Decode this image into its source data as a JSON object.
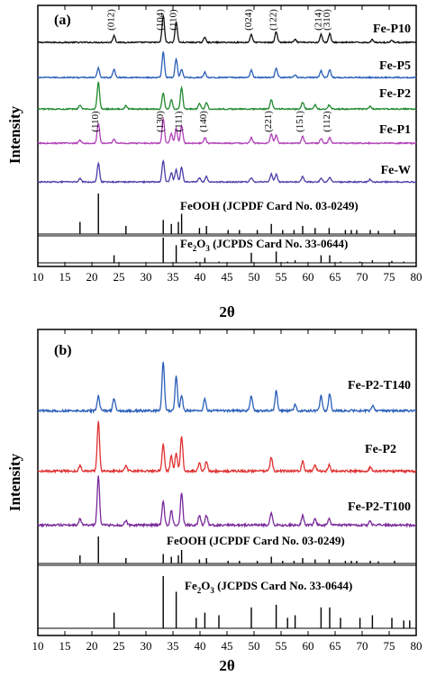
{
  "figure": {
    "x_title": "2θ",
    "y_title": "Intensity"
  },
  "chart_data": [
    {
      "type": "line",
      "panel": "(a)",
      "x_label": "2θ",
      "y_label": "Intensity",
      "xlim": [
        10,
        80
      ],
      "x_ticks": [
        10,
        15,
        20,
        25,
        30,
        35,
        40,
        45,
        50,
        55,
        60,
        65,
        70,
        75,
        80
      ],
      "series": [
        {
          "name": "Fe-P10",
          "color": "#111111",
          "profile": "hematite",
          "peaks": [
            [
              24.1,
              0.25
            ],
            [
              33.2,
              1.0
            ],
            [
              35.6,
              0.75
            ],
            [
              40.9,
              0.2
            ],
            [
              49.5,
              0.3
            ],
            [
              54.1,
              0.4
            ],
            [
              57.6,
              0.1
            ],
            [
              62.4,
              0.3
            ],
            [
              64.0,
              0.32
            ],
            [
              71.9,
              0.1
            ],
            [
              75.5,
              0.08
            ]
          ]
        },
        {
          "name": "Fe-P5",
          "color": "#2b5fb8",
          "profile": "mixed",
          "peaks": [
            [
              21.2,
              0.35
            ],
            [
              24.1,
              0.3
            ],
            [
              33.2,
              0.95
            ],
            [
              35.6,
              0.7
            ],
            [
              36.6,
              0.3
            ],
            [
              40.9,
              0.2
            ],
            [
              49.5,
              0.28
            ],
            [
              54.1,
              0.35
            ],
            [
              57.6,
              0.1
            ],
            [
              62.4,
              0.25
            ],
            [
              64.0,
              0.3
            ]
          ]
        },
        {
          "name": "Fe-P2",
          "color": "#1f8a2e",
          "profile": "goethite",
          "peaks": [
            [
              17.8,
              0.15
            ],
            [
              21.2,
              1.0
            ],
            [
              26.3,
              0.12
            ],
            [
              33.2,
              0.6
            ],
            [
              34.7,
              0.35
            ],
            [
              36.6,
              0.8
            ],
            [
              39.9,
              0.2
            ],
            [
              41.2,
              0.25
            ],
            [
              53.2,
              0.35
            ],
            [
              59.0,
              0.25
            ],
            [
              61.3,
              0.15
            ],
            [
              63.9,
              0.15
            ],
            [
              71.5,
              0.1
            ]
          ]
        },
        {
          "name": "Fe-P1",
          "color": "#b040b8",
          "profile": "goethite",
          "peaks": [
            [
              17.8,
              0.12
            ],
            [
              21.2,
              0.75
            ],
            [
              24.1,
              0.15
            ],
            [
              33.2,
              0.9
            ],
            [
              34.7,
              0.35
            ],
            [
              35.6,
              0.55
            ],
            [
              36.6,
              0.65
            ],
            [
              40.9,
              0.2
            ],
            [
              49.5,
              0.2
            ],
            [
              53.2,
              0.35
            ],
            [
              54.1,
              0.3
            ],
            [
              59.0,
              0.25
            ],
            [
              62.4,
              0.18
            ],
            [
              64.0,
              0.2
            ]
          ]
        },
        {
          "name": "Fe-W",
          "color": "#4a3fa8",
          "profile": "goethite",
          "peaks": [
            [
              17.8,
              0.12
            ],
            [
              21.2,
              0.7
            ],
            [
              33.2,
              0.8
            ],
            [
              34.7,
              0.35
            ],
            [
              35.6,
              0.45
            ],
            [
              36.6,
              0.55
            ],
            [
              39.9,
              0.15
            ],
            [
              41.2,
              0.2
            ],
            [
              49.5,
              0.15
            ],
            [
              53.2,
              0.3
            ],
            [
              54.1,
              0.28
            ],
            [
              59.0,
              0.2
            ],
            [
              62.4,
              0.15
            ],
            [
              64.0,
              0.18
            ],
            [
              71.5,
              0.1
            ]
          ]
        }
      ],
      "hkl_upper": [
        {
          "label": "(012)",
          "x": 24.1
        },
        {
          "label": "(104)",
          "x": 33.2
        },
        {
          "label": "(110)",
          "x": 35.6
        },
        {
          "label": "(024)",
          "x": 49.5
        },
        {
          "label": "(122)",
          "x": 54.1
        },
        {
          "label": "(214)",
          "x": 62.4
        },
        {
          "label": "(310)",
          "x": 64.0
        }
      ],
      "hkl_lower": [
        {
          "label": "(110)",
          "x": 21.2
        },
        {
          "label": "(130)",
          "x": 33.2
        },
        {
          "label": "(111)",
          "x": 36.6
        },
        {
          "label": "(140)",
          "x": 41.2
        },
        {
          "label": "(221)",
          "x": 53.2
        },
        {
          "label": "(151)",
          "x": 59.0
        },
        {
          "label": "(112)",
          "x": 64.0
        }
      ],
      "references": [
        {
          "name": "FeOOH (JCPDF Card No. 03-0249)",
          "lines": [
            [
              17.8,
              0.3
            ],
            [
              21.2,
              1.0
            ],
            [
              26.3,
              0.2
            ],
            [
              33.2,
              0.35
            ],
            [
              34.7,
              0.25
            ],
            [
              36.0,
              0.3
            ],
            [
              36.6,
              0.5
            ],
            [
              39.9,
              0.15
            ],
            [
              41.2,
              0.2
            ],
            [
              45.2,
              0.1
            ],
            [
              47.3,
              0.1
            ],
            [
              50.6,
              0.1
            ],
            [
              53.2,
              0.25
            ],
            [
              55.3,
              0.1
            ],
            [
              57.4,
              0.1
            ],
            [
              59.0,
              0.2
            ],
            [
              61.3,
              0.15
            ],
            [
              63.9,
              0.15
            ],
            [
              66.9,
              0.1
            ],
            [
              68.0,
              0.1
            ],
            [
              69.0,
              0.1
            ],
            [
              71.5,
              0.1
            ],
            [
              73.0,
              0.08
            ],
            [
              76.0,
              0.1
            ]
          ]
        },
        {
          "name": "Fe2O3 (JCPDS Card No. 33-0644)",
          "lines": [
            [
              24.1,
              0.3
            ],
            [
              33.2,
              1.0
            ],
            [
              35.6,
              0.7
            ],
            [
              39.3,
              0.05
            ],
            [
              40.9,
              0.2
            ],
            [
              43.5,
              0.05
            ],
            [
              49.5,
              0.4
            ],
            [
              54.1,
              0.45
            ],
            [
              56.2,
              0.05
            ],
            [
              57.6,
              0.1
            ],
            [
              62.4,
              0.3
            ],
            [
              64.0,
              0.3
            ],
            [
              66.0,
              0.05
            ],
            [
              69.6,
              0.05
            ],
            [
              71.9,
              0.1
            ],
            [
              75.5,
              0.08
            ],
            [
              77.7,
              0.05
            ]
          ]
        }
      ]
    },
    {
      "type": "line",
      "panel": "(b)",
      "x_label": "2θ",
      "y_label": "Intensity",
      "xlim": [
        10,
        80
      ],
      "x_ticks": [
        10,
        15,
        20,
        25,
        30,
        35,
        40,
        45,
        50,
        55,
        60,
        65,
        70,
        75,
        80
      ],
      "series": [
        {
          "name": "Fe-P2-T140",
          "color": "#2b5fb8",
          "profile": "mixed",
          "peaks": [
            [
              21.2,
              0.3
            ],
            [
              24.1,
              0.25
            ],
            [
              33.2,
              1.0
            ],
            [
              35.6,
              0.7
            ],
            [
              36.6,
              0.3
            ],
            [
              40.9,
              0.25
            ],
            [
              49.5,
              0.3
            ],
            [
              54.1,
              0.4
            ],
            [
              57.6,
              0.12
            ],
            [
              62.4,
              0.3
            ],
            [
              64.0,
              0.35
            ],
            [
              72.0,
              0.1
            ]
          ]
        },
        {
          "name": "Fe-P2",
          "color": "#e03030",
          "profile": "goethite",
          "peaks": [
            [
              17.8,
              0.12
            ],
            [
              21.2,
              1.0
            ],
            [
              26.3,
              0.1
            ],
            [
              33.2,
              0.55
            ],
            [
              34.7,
              0.3
            ],
            [
              35.6,
              0.35
            ],
            [
              36.6,
              0.7
            ],
            [
              39.9,
              0.15
            ],
            [
              41.2,
              0.2
            ],
            [
              53.2,
              0.28
            ],
            [
              59.0,
              0.2
            ],
            [
              61.3,
              0.12
            ],
            [
              63.9,
              0.12
            ],
            [
              71.5,
              0.08
            ]
          ]
        },
        {
          "name": "Fe-P2-T100",
          "color": "#7a2a9a",
          "profile": "goethite",
          "peaks": [
            [
              17.8,
              0.12
            ],
            [
              21.2,
              1.0
            ],
            [
              26.3,
              0.1
            ],
            [
              33.2,
              0.5
            ],
            [
              34.7,
              0.3
            ],
            [
              36.6,
              0.65
            ],
            [
              39.9,
              0.2
            ],
            [
              41.2,
              0.2
            ],
            [
              53.2,
              0.25
            ],
            [
              59.0,
              0.2
            ],
            [
              61.3,
              0.12
            ],
            [
              63.9,
              0.12
            ],
            [
              71.5,
              0.08
            ]
          ]
        }
      ],
      "references": [
        {
          "name": "FeOOH (JCPDF Card No. 03-0249)",
          "lines": [
            [
              17.8,
              0.3
            ],
            [
              21.2,
              1.0
            ],
            [
              26.3,
              0.2
            ],
            [
              33.2,
              0.35
            ],
            [
              34.7,
              0.25
            ],
            [
              36.0,
              0.3
            ],
            [
              36.6,
              0.5
            ],
            [
              39.9,
              0.15
            ],
            [
              41.2,
              0.2
            ],
            [
              45.2,
              0.1
            ],
            [
              47.3,
              0.1
            ],
            [
              50.6,
              0.1
            ],
            [
              53.2,
              0.25
            ],
            [
              55.3,
              0.1
            ],
            [
              57.4,
              0.1
            ],
            [
              59.0,
              0.2
            ],
            [
              61.3,
              0.15
            ],
            [
              63.9,
              0.15
            ],
            [
              66.9,
              0.1
            ],
            [
              68.0,
              0.1
            ],
            [
              69.0,
              0.1
            ],
            [
              71.5,
              0.1
            ],
            [
              73.0,
              0.08
            ],
            [
              76.0,
              0.1
            ]
          ]
        },
        {
          "name": "Fe2O3 (JCPDS Card No. 33-0644)",
          "lines": [
            [
              24.1,
              0.3
            ],
            [
              33.2,
              1.0
            ],
            [
              35.6,
              0.7
            ],
            [
              39.3,
              0.2
            ],
            [
              40.9,
              0.3
            ],
            [
              43.5,
              0.25
            ],
            [
              49.5,
              0.4
            ],
            [
              54.1,
              0.45
            ],
            [
              56.2,
              0.2
            ],
            [
              57.6,
              0.25
            ],
            [
              62.4,
              0.4
            ],
            [
              64.0,
              0.4
            ],
            [
              66.0,
              0.2
            ],
            [
              69.6,
              0.2
            ],
            [
              71.9,
              0.25
            ],
            [
              75.5,
              0.2
            ],
            [
              77.7,
              0.15
            ],
            [
              78.8,
              0.15
            ]
          ]
        }
      ]
    }
  ]
}
